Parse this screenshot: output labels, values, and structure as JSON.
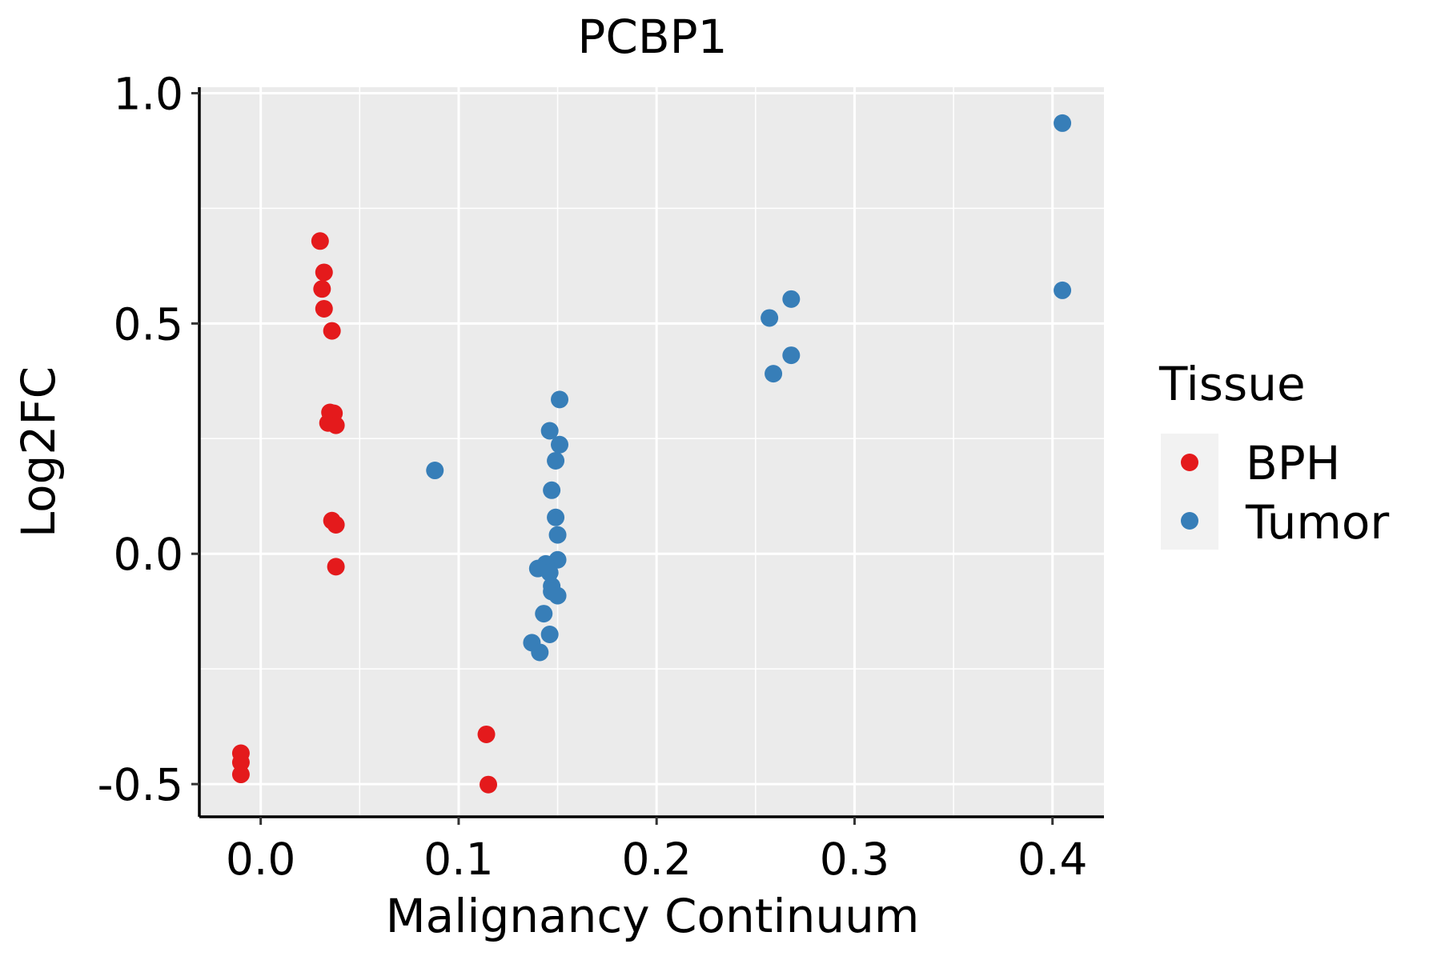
{
  "chart_data": {
    "type": "scatter",
    "title": "PCBP1",
    "xlabel": "Malignancy Continuum",
    "ylabel": "Log2FC",
    "xlim": [
      -0.031,
      0.426
    ],
    "ylim": [
      -0.571,
      1.013
    ],
    "x_ticks": [
      0.0,
      0.1,
      0.2,
      0.3,
      0.4
    ],
    "x_tick_labels": [
      "0.0",
      "0.1",
      "0.2",
      "0.3",
      "0.4"
    ],
    "y_ticks": [
      -0.5,
      0.0,
      0.5,
      1.0
    ],
    "y_tick_labels": [
      "-0.5",
      "0.0",
      "0.5",
      "1.0"
    ],
    "grid": true,
    "legend": {
      "title": "Tissue",
      "position": "right",
      "entries": [
        {
          "label": "BPH",
          "color": "#E41A1C"
        },
        {
          "label": "Tumor",
          "color": "#377EB8"
        }
      ]
    },
    "series": [
      {
        "name": "BPH",
        "color": "#E41A1C",
        "points": [
          {
            "x": 0.03,
            "y": 0.679
          },
          {
            "x": 0.032,
            "y": 0.611
          },
          {
            "x": 0.031,
            "y": 0.575
          },
          {
            "x": 0.032,
            "y": 0.532
          },
          {
            "x": 0.036,
            "y": 0.484
          },
          {
            "x": 0.035,
            "y": 0.307
          },
          {
            "x": 0.037,
            "y": 0.305
          },
          {
            "x": 0.034,
            "y": 0.284
          },
          {
            "x": 0.038,
            "y": 0.279
          },
          {
            "x": 0.036,
            "y": 0.072
          },
          {
            "x": 0.038,
            "y": 0.063
          },
          {
            "x": 0.038,
            "y": -0.028
          },
          {
            "x": -0.01,
            "y": -0.433
          },
          {
            "x": -0.01,
            "y": -0.453
          },
          {
            "x": -0.01,
            "y": -0.479
          },
          {
            "x": 0.114,
            "y": -0.392
          },
          {
            "x": 0.115,
            "y": -0.501
          }
        ]
      },
      {
        "name": "Tumor",
        "color": "#377EB8",
        "points": [
          {
            "x": 0.405,
            "y": 0.935
          },
          {
            "x": 0.405,
            "y": 0.572
          },
          {
            "x": 0.268,
            "y": 0.553
          },
          {
            "x": 0.257,
            "y": 0.512
          },
          {
            "x": 0.268,
            "y": 0.431
          },
          {
            "x": 0.259,
            "y": 0.391
          },
          {
            "x": 0.151,
            "y": 0.335
          },
          {
            "x": 0.146,
            "y": 0.267
          },
          {
            "x": 0.151,
            "y": 0.237
          },
          {
            "x": 0.149,
            "y": 0.202
          },
          {
            "x": 0.088,
            "y": 0.181
          },
          {
            "x": 0.147,
            "y": 0.138
          },
          {
            "x": 0.149,
            "y": 0.079
          },
          {
            "x": 0.15,
            "y": 0.041
          },
          {
            "x": 0.15,
            "y": -0.013
          },
          {
            "x": 0.144,
            "y": -0.022
          },
          {
            "x": 0.14,
            "y": -0.032
          },
          {
            "x": 0.146,
            "y": -0.041
          },
          {
            "x": 0.147,
            "y": -0.07
          },
          {
            "x": 0.147,
            "y": -0.082
          },
          {
            "x": 0.15,
            "y": -0.091
          },
          {
            "x": 0.143,
            "y": -0.13
          },
          {
            "x": 0.146,
            "y": -0.175
          },
          {
            "x": 0.137,
            "y": -0.193
          },
          {
            "x": 0.141,
            "y": -0.214
          }
        ]
      }
    ]
  }
}
